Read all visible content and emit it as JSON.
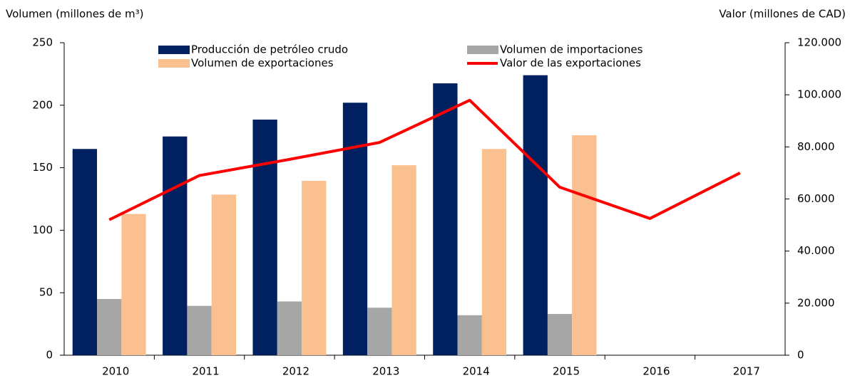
{
  "chart_data": {
    "type": "bar",
    "y_label": "Volumen (millones de m³)",
    "y2_label": "Valor (millones de CAD)",
    "categories": [
      "2010",
      "2011",
      "2012",
      "2013",
      "2014",
      "2015",
      "2016",
      "2017"
    ],
    "series": [
      {
        "name": "Producción de petróleo crudo",
        "color": "#002060",
        "values": [
          165,
          175,
          188.5,
          202,
          217.5,
          224,
          null,
          null
        ]
      },
      {
        "name": "Volumen de importaciones",
        "color": "#a6a6a6",
        "values": [
          45,
          39.5,
          43,
          38,
          32,
          33,
          null,
          null
        ]
      },
      {
        "name": "Volumen de exportaciones",
        "color": "#fac090",
        "values": [
          113,
          128.5,
          139.5,
          152,
          165,
          176,
          null,
          null
        ]
      },
      {
        "name": "Valor de las exportaciones",
        "color": "#ff0000",
        "type": "line",
        "axis": "y2",
        "values": [
          52000,
          69000,
          75200,
          81700,
          97900,
          64500,
          52500,
          70000
        ]
      }
    ],
    "ylim": [
      0,
      250
    ],
    "yticks": [
      0,
      50,
      100,
      150,
      200,
      250
    ],
    "y2lim": [
      0,
      120000
    ],
    "y2ticks": [
      0,
      {
        "value": 20000,
        "label": "20.000"
      },
      {
        "value": 40000,
        "label": "40.000"
      },
      {
        "value": 60000,
        "label": "60.000"
      },
      {
        "value": 80000,
        "label": "80.000"
      },
      {
        "value": 100000,
        "label": "100.000"
      },
      {
        "value": 120000,
        "label": "120.000"
      }
    ],
    "grid": false
  }
}
